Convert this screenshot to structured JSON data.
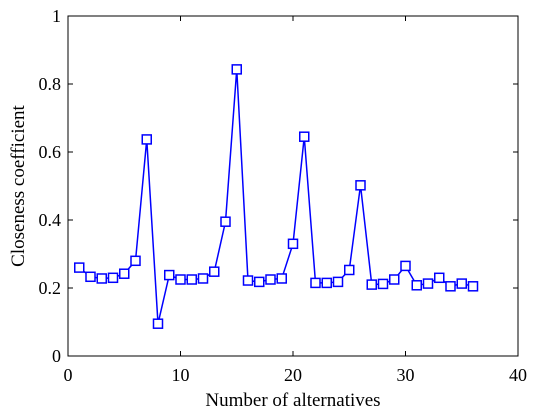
{
  "chart_data": {
    "type": "line",
    "xlabel": "Number of alternatives",
    "ylabel": "Closeness coefficient",
    "xlim": [
      0,
      40
    ],
    "ylim": [
      0,
      1
    ],
    "x_ticks": [
      0,
      10,
      20,
      30,
      40
    ],
    "y_ticks": [
      0,
      0.2,
      0.4,
      0.6,
      0.8,
      1
    ],
    "x_tick_labels": [
      "0",
      "10",
      "20",
      "30",
      "40"
    ],
    "y_tick_labels": [
      "0",
      "0.2",
      "0.4",
      "0.6",
      "0.8",
      "1"
    ],
    "grid": false,
    "marker": "square",
    "series_color": "#0000ff",
    "x": [
      1,
      2,
      3,
      4,
      5,
      6,
      7,
      8,
      9,
      10,
      11,
      12,
      13,
      14,
      15,
      16,
      17,
      18,
      19,
      20,
      21,
      22,
      23,
      24,
      25,
      26,
      27,
      28,
      29,
      30,
      31,
      32,
      33,
      34,
      35,
      36
    ],
    "series": [
      {
        "values": [
          0.26,
          0.233,
          0.228,
          0.23,
          0.242,
          0.28,
          0.637,
          0.095,
          0.238,
          0.225,
          0.225,
          0.228,
          0.248,
          0.395,
          0.843,
          0.222,
          0.218,
          0.225,
          0.228,
          0.33,
          0.645,
          0.215,
          0.215,
          0.218,
          0.253,
          0.502,
          0.21,
          0.212,
          0.225,
          0.265,
          0.208,
          0.213,
          0.23,
          0.205,
          0.213,
          0.205
        ]
      }
    ]
  }
}
